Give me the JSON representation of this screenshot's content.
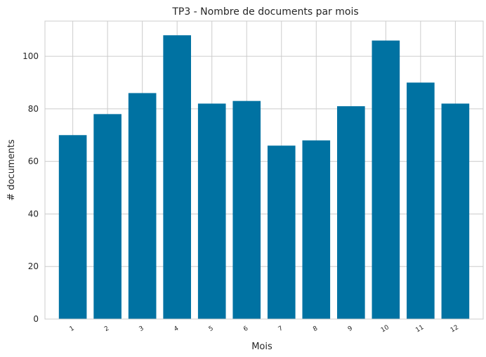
{
  "chart_data": {
    "type": "bar",
    "title": "TP3 - Nombre de documents par mois",
    "xlabel": "Mois",
    "ylabel": "# documents",
    "categories": [
      "1",
      "2",
      "3",
      "4",
      "5",
      "6",
      "7",
      "8",
      "9",
      "10",
      "11",
      "12"
    ],
    "values": [
      70,
      78,
      86,
      108,
      82,
      83,
      66,
      68,
      81,
      106,
      90,
      82
    ],
    "ylim": [
      0,
      113.4
    ],
    "yticks": [
      0,
      20,
      40,
      60,
      80,
      100
    ],
    "xtick_rotation": -30,
    "grid": true,
    "bar_color": "#0072a2",
    "grid_color": "#cccccc",
    "background": "#ffffff"
  }
}
